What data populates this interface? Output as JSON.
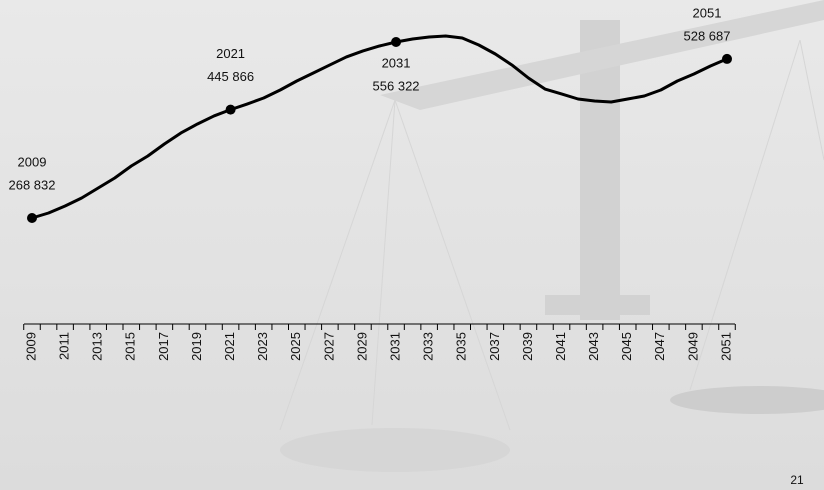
{
  "chart_data": {
    "type": "line",
    "categories": [
      "2009",
      null,
      "2011",
      null,
      "2013",
      null,
      "2015",
      null,
      "2017",
      null,
      "2019",
      null,
      "2021",
      null,
      "2023",
      null,
      "2025",
      null,
      "2027",
      null,
      "2029",
      null,
      "2031",
      null,
      "2033",
      null,
      "2035",
      null,
      "2037",
      null,
      "2039",
      null,
      "2041",
      null,
      "2043",
      null,
      "2045",
      null,
      "2047",
      null,
      "2049",
      null,
      "2051"
    ],
    "point_years": [
      "2009",
      "2021",
      "2031",
      "2051"
    ],
    "values": [
      268832,
      277000,
      288400,
      301500,
      317800,
      334200,
      353800,
      370100,
      389700,
      407700,
      422400,
      435500,
      445866,
      455000,
      464800,
      477900,
      492600,
      505700,
      518800,
      531900,
      541700,
      549800,
      556322,
      561200,
      564500,
      566100,
      562900,
      551400,
      536700,
      518800,
      497500,
      479500,
      471400,
      463200,
      459900,
      458300,
      463200,
      468100,
      477900,
      492600,
      504000,
      517100,
      528687
    ],
    "value_labels": [
      "268 832",
      null,
      null,
      null,
      null,
      null,
      null,
      null,
      null,
      null,
      null,
      null,
      "445 866",
      null,
      null,
      null,
      null,
      null,
      null,
      null,
      null,
      null,
      "556 322",
      null,
      null,
      null,
      null,
      null,
      null,
      null,
      null,
      null,
      null,
      null,
      null,
      null,
      null,
      null,
      null,
      null,
      null,
      null,
      "528 687"
    ],
    "color": "#000000"
  },
  "page_number": "21"
}
